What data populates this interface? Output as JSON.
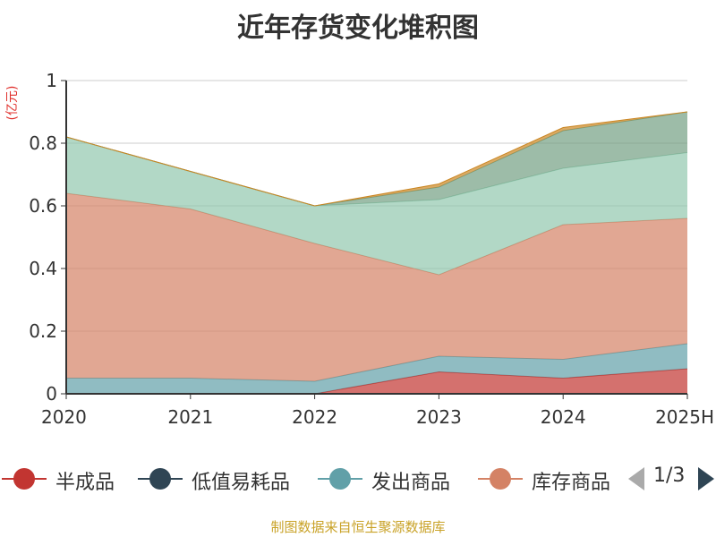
{
  "chart_data": {
    "type": "area",
    "stacked": true,
    "title": "近年存货变化堆积图",
    "unit_label": "(亿元)",
    "categories": [
      "2020",
      "2021",
      "2022",
      "2023",
      "2024",
      "2025H"
    ],
    "ylim": [
      0,
      1
    ],
    "yticks": [
      "0",
      "0.2",
      "0.4",
      "0.6",
      "0.8",
      "1"
    ],
    "grid": true,
    "series": [
      {
        "name": "半成品",
        "color": "#c23531",
        "values": [
          0.0,
          0.0,
          0.0,
          0.07,
          0.05,
          0.08
        ]
      },
      {
        "name": "低值易耗品",
        "color": "#2f4554",
        "values": [
          0.0,
          0.0,
          0.0,
          0.0,
          0.0,
          0.0
        ]
      },
      {
        "name": "发出商品",
        "color": "#61a0a8",
        "values": [
          0.05,
          0.05,
          0.04,
          0.05,
          0.06,
          0.08
        ]
      },
      {
        "name": "库存商品",
        "color": "#d48265",
        "values": [
          0.59,
          0.54,
          0.44,
          0.26,
          0.43,
          0.4
        ]
      },
      {
        "name": "",
        "color": "#91c7ae",
        "values": [
          0.18,
          0.12,
          0.12,
          0.24,
          0.18,
          0.21
        ]
      },
      {
        "name": "",
        "color": "#749f83",
        "values": [
          0.0,
          0.0,
          0.0,
          0.04,
          0.12,
          0.13
        ]
      },
      {
        "name": "",
        "color": "#ca8622",
        "values": [
          0.0,
          0.0,
          0.0,
          0.01,
          0.01,
          0.0
        ]
      }
    ],
    "legend": {
      "placement": "bottom",
      "page": "1/3"
    }
  },
  "footer": {
    "source": "制图数据来自恒生聚源数据库"
  }
}
